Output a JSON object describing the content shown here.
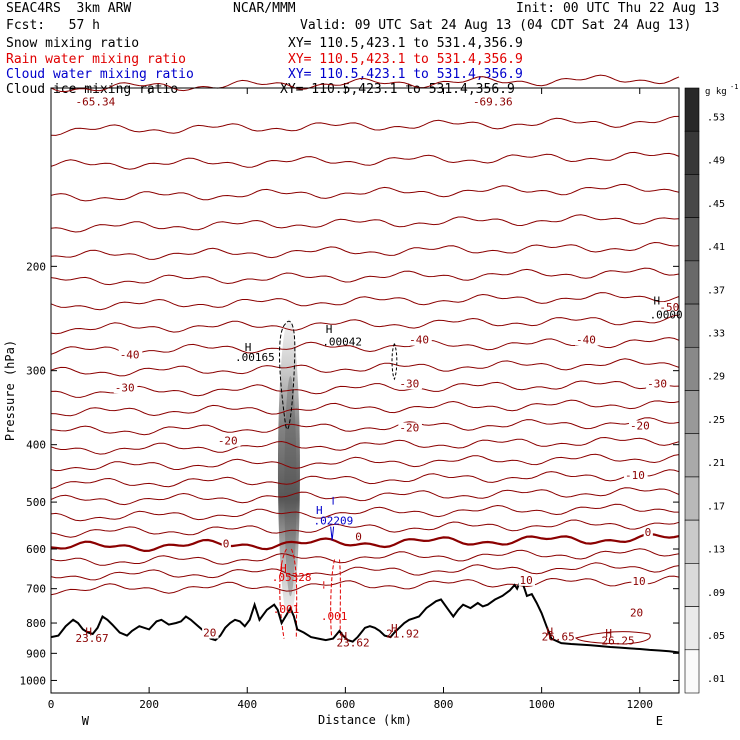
{
  "header": {
    "model": "SEAC4RS  3km ARW",
    "center": "NCAR/MMM",
    "init": "Init: 00 UTC Thu 22 Aug 13",
    "fcst": "Fcst:   57 h",
    "valid": "Valid: 09 UTC Sat 24 Aug 13 (04 CDT Sat 24 Aug 13)"
  },
  "fields": [
    {
      "name": "Snow mixing ratio",
      "xy": "XY= 110.5,423.1 to 531.4,356.9",
      "color": "#000000"
    },
    {
      "name": "Rain water mixing ratio",
      "xy": "XY= 110.5,423.1 to 531.4,356.9",
      "color": "#e00000"
    },
    {
      "name": "Cloud water mixing ratio",
      "xy": "XY= 110.5,423.1 to 531.4,356.9",
      "color": "#0000cc"
    },
    {
      "name": "Cloud ice mixing ratio",
      "xy": "XY= 110.5,423.1 to 531.4,356.9",
      "color": "#000000"
    }
  ],
  "colors": {
    "temperature": "#8b0000",
    "rain": "#e00000",
    "cloud_water": "#0000cc",
    "terrain": "#000000"
  },
  "chart_data": {
    "type": "cross-section",
    "xlabel": "Distance (km)",
    "ylabel": "Pressure (hPa)",
    "xlim": [
      0,
      1280
    ],
    "ylim": [
      1050,
      100
    ],
    "y_scale": "log",
    "x_ticks": [
      "0",
      "200",
      "400",
      "600",
      "800",
      "1000",
      "1200"
    ],
    "y_ticks": [
      "200",
      "300",
      "400",
      "500",
      "600",
      "700",
      "800",
      "900",
      "1000"
    ],
    "y_tick_values": [
      200,
      300,
      400,
      500,
      600,
      700,
      800,
      900,
      1000
    ],
    "x_tick_values": [
      0,
      200,
      400,
      600,
      800,
      1000,
      1200
    ],
    "west_label": "W",
    "east_label": "E",
    "colorbar": {
      "unit": "g kg",
      "unit_exp": "-1",
      "labels": [
        ".53",
        ".49",
        ".45",
        ".41",
        ".37",
        ".33",
        ".29",
        ".25",
        ".21",
        ".17",
        ".13",
        ".09",
        ".05",
        ".01"
      ]
    },
    "temperature_levels_p0": [
      100,
      118,
      135,
      153,
      172,
      192,
      212,
      233,
      255,
      278,
      302,
      327,
      353,
      380,
      408,
      436,
      466,
      497,
      530,
      563,
      596,
      631,
      666,
      703
    ],
    "zero_isotherm_p": 596,
    "temperature_labels": [
      {
        "text": "-65.34",
        "x": 50,
        "p": 107
      },
      {
        "text": "-69.36",
        "x": 860,
        "p": 107
      },
      {
        "text": "-50",
        "x": 1240,
        "p": 238
      },
      {
        "text": "-40",
        "x": 140,
        "p": 286
      },
      {
        "text": "-40",
        "x": 730,
        "p": 270
      },
      {
        "text": "-40",
        "x": 1070,
        "p": 270
      },
      {
        "text": "-30",
        "x": 130,
        "p": 325
      },
      {
        "text": "-30",
        "x": 710,
        "p": 320
      },
      {
        "text": "-30",
        "x": 1215,
        "p": 320
      },
      {
        "text": "-20",
        "x": 340,
        "p": 400
      },
      {
        "text": "-20",
        "x": 710,
        "p": 380
      },
      {
        "text": "-20",
        "x": 1180,
        "p": 377
      },
      {
        "text": "-10",
        "x": 1170,
        "p": 457
      },
      {
        "text": "0",
        "x": 350,
        "p": 597
      },
      {
        "text": "0",
        "x": 620,
        "p": 580
      },
      {
        "text": "0",
        "x": 1210,
        "p": 570
      },
      {
        "text": "10",
        "x": 955,
        "p": 687
      },
      {
        "text": "10",
        "x": 1185,
        "p": 690
      },
      {
        "text": "20",
        "x": 310,
        "p": 843
      },
      {
        "text": "20",
        "x": 1180,
        "p": 780
      }
    ],
    "annotations": [
      {
        "text": "H",
        "x": 395,
        "p": 278,
        "color": "#000000"
      },
      {
        "text": ".00165",
        "x": 375,
        "p": 289,
        "color": "#000000"
      },
      {
        "text": "H",
        "x": 560,
        "p": 259,
        "color": "#000000"
      },
      {
        "text": ".00042",
        "x": 553,
        "p": 272,
        "color": "#000000"
      },
      {
        "text": "H",
        "x": 1228,
        "p": 232,
        "color": "#000000"
      },
      {
        "text": ".0000",
        "x": 1220,
        "p": 245,
        "color": "#000000"
      },
      {
        "text": "H",
        "x": 540,
        "p": 524,
        "color": "#0000cc"
      },
      {
        "text": ".02209",
        "x": 535,
        "p": 545,
        "color": "#0000cc"
      },
      {
        "text": "H",
        "x": 467,
        "p": 656,
        "color": "#e00000"
      },
      {
        "text": ".05328",
        "x": 450,
        "p": 679,
        "color": "#e00000"
      },
      {
        "text": ".001",
        "x": 452,
        "p": 770,
        "color": "#e00000"
      },
      {
        "text": ".001",
        "x": 550,
        "p": 790,
        "color": "#e00000"
      },
      {
        "text": "H",
        "x": 70,
        "p": 840,
        "color": "#8b0000"
      },
      {
        "text": "23.67",
        "x": 50,
        "p": 862,
        "color": "#8b0000"
      },
      {
        "text": "H",
        "x": 590,
        "p": 855,
        "color": "#8b0000"
      },
      {
        "text": "23.62",
        "x": 582,
        "p": 877,
        "color": "#8b0000"
      },
      {
        "text": "H",
        "x": 693,
        "p": 828,
        "color": "#8b0000"
      },
      {
        "text": "21.92",
        "x": 683,
        "p": 846,
        "color": "#8b0000"
      },
      {
        "text": "H",
        "x": 1010,
        "p": 840,
        "color": "#8b0000"
      },
      {
        "text": "26.65",
        "x": 1000,
        "p": 856,
        "color": "#8b0000"
      },
      {
        "text": "H",
        "x": 1130,
        "p": 845,
        "color": "#8b0000"
      },
      {
        "text": "26.25",
        "x": 1122,
        "p": 869,
        "color": "#8b0000"
      }
    ],
    "terrain": [
      [
        0,
        845
      ],
      [
        15,
        840
      ],
      [
        30,
        810
      ],
      [
        45,
        790
      ],
      [
        55,
        800
      ],
      [
        65,
        820
      ],
      [
        75,
        830
      ],
      [
        85,
        835
      ],
      [
        95,
        815
      ],
      [
        105,
        780
      ],
      [
        115,
        790
      ],
      [
        125,
        805
      ],
      [
        140,
        830
      ],
      [
        155,
        840
      ],
      [
        165,
        825
      ],
      [
        180,
        810
      ],
      [
        200,
        820
      ],
      [
        215,
        795
      ],
      [
        225,
        790
      ],
      [
        240,
        805
      ],
      [
        255,
        800
      ],
      [
        265,
        795
      ],
      [
        275,
        780
      ],
      [
        285,
        790
      ],
      [
        300,
        810
      ],
      [
        315,
        830
      ],
      [
        325,
        850
      ],
      [
        335,
        855
      ],
      [
        345,
        840
      ],
      [
        355,
        815
      ],
      [
        365,
        800
      ],
      [
        375,
        790
      ],
      [
        385,
        795
      ],
      [
        395,
        810
      ],
      [
        405,
        790
      ],
      [
        415,
        745
      ],
      [
        425,
        790
      ],
      [
        440,
        760
      ],
      [
        455,
        745
      ],
      [
        462,
        760
      ],
      [
        470,
        800
      ],
      [
        480,
        775
      ],
      [
        488,
        755
      ],
      [
        495,
        780
      ],
      [
        502,
        820
      ],
      [
        515,
        830
      ],
      [
        530,
        845
      ],
      [
        545,
        850
      ],
      [
        560,
        855
      ],
      [
        575,
        850
      ],
      [
        580,
        840
      ],
      [
        588,
        825
      ],
      [
        595,
        840
      ],
      [
        605,
        855
      ],
      [
        615,
        860
      ],
      [
        625,
        845
      ],
      [
        640,
        815
      ],
      [
        650,
        810
      ],
      [
        660,
        815
      ],
      [
        670,
        825
      ],
      [
        680,
        840
      ],
      [
        692,
        845
      ],
      [
        700,
        830
      ],
      [
        710,
        815
      ],
      [
        720,
        800
      ],
      [
        730,
        790
      ],
      [
        740,
        785
      ],
      [
        750,
        780
      ],
      [
        765,
        755
      ],
      [
        775,
        745
      ],
      [
        785,
        735
      ],
      [
        795,
        730
      ],
      [
        810,
        760
      ],
      [
        820,
        780
      ],
      [
        830,
        760
      ],
      [
        840,
        745
      ],
      [
        855,
        755
      ],
      [
        870,
        740
      ],
      [
        880,
        750
      ],
      [
        890,
        745
      ],
      [
        905,
        730
      ],
      [
        920,
        720
      ],
      [
        935,
        705
      ],
      [
        945,
        690
      ],
      [
        950,
        700
      ],
      [
        958,
        675
      ],
      [
        965,
        700
      ],
      [
        970,
        720
      ],
      [
        980,
        715
      ],
      [
        990,
        740
      ],
      [
        1000,
        770
      ],
      [
        1010,
        810
      ],
      [
        1020,
        850
      ],
      [
        1040,
        865
      ],
      [
        1060,
        868
      ],
      [
        1080,
        870
      ],
      [
        1100,
        872
      ],
      [
        1120,
        875
      ],
      [
        1140,
        878
      ],
      [
        1160,
        880
      ],
      [
        1180,
        883
      ],
      [
        1200,
        885
      ],
      [
        1220,
        888
      ],
      [
        1240,
        890
      ],
      [
        1260,
        893
      ],
      [
        1280,
        897
      ]
    ]
  }
}
